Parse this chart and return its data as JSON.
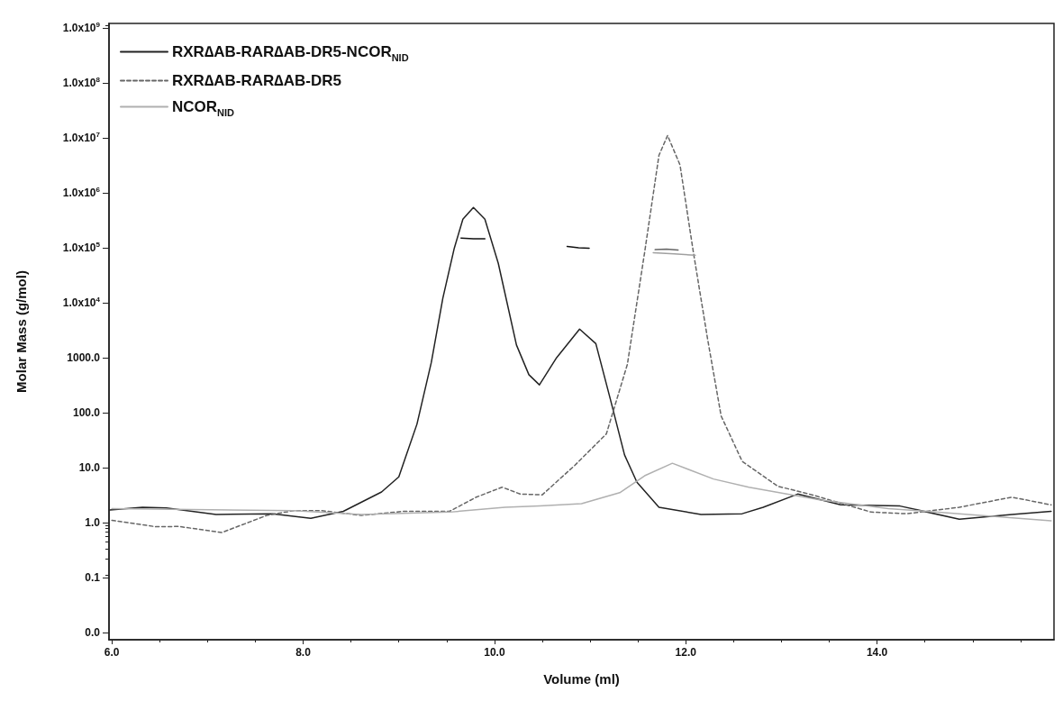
{
  "chart_data": {
    "type": "line",
    "xlabel": "Volume (ml)",
    "ylabel": "Molar Mass (g/mol)",
    "xlim": [
      5.97,
      15.85
    ],
    "xticks": [
      {
        "value": 6,
        "label": "6.0"
      },
      {
        "value": 8,
        "label": "8.0"
      },
      {
        "value": 10,
        "label": "10.0"
      },
      {
        "value": 12,
        "label": "12.0"
      },
      {
        "value": 14,
        "label": "14.0"
      }
    ],
    "ylim": [
      0.0074,
      1200000000
    ],
    "log": "y",
    "yticks": [
      {
        "value": 0.01,
        "label": "0.0"
      },
      {
        "value": 0.1,
        "label": "0.1"
      },
      {
        "value": 1,
        "label": "1.0"
      },
      {
        "value": 10,
        "label": "10.0"
      },
      {
        "value": 100,
        "label": "100.0"
      },
      {
        "value": 1000,
        "label": "1000.0"
      },
      {
        "value": 10000,
        "label": "1.0x10$^{4}$"
      },
      {
        "value": 100000,
        "label": "1.0x10$^{5}$"
      },
      {
        "value": 1000000,
        "label": "1.0x10$^{6}$"
      },
      {
        "value": 10000000,
        "label": "1.0x10$^{7}$"
      },
      {
        "value": 100000000,
        "label": "1.0x10$^{8}$"
      },
      {
        "value": 1000000000,
        "label": "1.0x10$^{9}$"
      }
    ],
    "grid": false,
    "legend": "top left",
    "marker": "none",
    "series": [
      {
        "name": "RXR∆AB-RAR∆AB-DR5-NCOR$_{NID}$",
        "color": "#222222",
        "line_style": "solid",
        "x": [
          5.98,
          6.32,
          6.57,
          7.09,
          7.68,
          8.08,
          8.42,
          8.82,
          9.0,
          9.19,
          9.34,
          9.46,
          9.58,
          9.67,
          9.78,
          9.9,
          10.04,
          10.23,
          10.36,
          10.47,
          10.65,
          10.89,
          11.06,
          11.21,
          11.36,
          11.49,
          11.72,
          12.16,
          12.59,
          12.81,
          13.17,
          13.62,
          14.24,
          14.86,
          15.41,
          15.82
        ],
        "values": [
          1.7,
          1.9,
          1.85,
          1.4,
          1.45,
          1.2,
          1.6,
          3.6,
          6.8,
          62,
          820,
          12000,
          98000,
          330000,
          540000,
          330000,
          52000,
          1700,
          490,
          320,
          1000,
          3300,
          1800,
          180,
          17,
          5.4,
          1.9,
          1.4,
          1.45,
          1.9,
          3.3,
          2.1,
          2.0,
          1.15,
          1.4,
          1.6
        ]
      },
      {
        "name": "RXR∆AB-RAR∆AB-DR5",
        "color": "#666666",
        "line_style": "dashed",
        "x": [
          6.0,
          6.46,
          6.7,
          7.15,
          7.62,
          7.9,
          8.19,
          8.61,
          9.04,
          9.53,
          9.81,
          10.08,
          10.27,
          10.5,
          10.84,
          11.17,
          11.39,
          11.57,
          11.72,
          11.81,
          11.94,
          12.08,
          12.23,
          12.37,
          12.59,
          12.96,
          13.32,
          13.94,
          14.31,
          14.86,
          15.41,
          15.82
        ],
        "values": [
          1.1,
          0.84,
          0.85,
          0.66,
          1.35,
          1.65,
          1.65,
          1.35,
          1.6,
          1.6,
          2.9,
          4.4,
          3.3,
          3.2,
          11,
          41,
          760,
          82000,
          4800000,
          11000000,
          3200000,
          82000,
          2100,
          87,
          13,
          4.6,
          3.2,
          1.55,
          1.45,
          1.9,
          2.9,
          2.1
        ]
      },
      {
        "name": "NCOR$_{NID}$",
        "color": "#b0b0b0",
        "line_style": "solid",
        "x": [
          6.0,
          7.9,
          8.61,
          9.53,
          10.11,
          10.47,
          10.91,
          11.31,
          11.57,
          11.86,
          12.29,
          12.66,
          13.4,
          14.12,
          14.86,
          15.82
        ],
        "values": [
          1.8,
          1.65,
          1.4,
          1.55,
          1.9,
          2.0,
          2.2,
          3.5,
          7.1,
          12,
          6.2,
          4.4,
          2.6,
          1.8,
          1.45,
          1.08
        ]
      },
      {
        "color": "#111111",
        "line_style": "solid",
        "x": [
          9.65,
          9.78,
          9.9
        ],
        "values": [
          150000,
          145000,
          145000
        ]
      },
      {
        "color": "#111111",
        "line_style": "solid",
        "x": [
          10.76,
          10.88,
          10.99
        ],
        "values": [
          105000,
          100000,
          98000
        ]
      },
      {
        "color": "#666666",
        "line_style": "solid",
        "x": [
          11.68,
          11.8,
          11.92
        ],
        "values": [
          92000,
          94000,
          91000
        ]
      },
      {
        "color": "#a0a0a0",
        "line_style": "solid",
        "x": [
          11.66,
          11.88,
          12.1
        ],
        "values": [
          81000,
          77000,
          73000
        ]
      }
    ]
  }
}
